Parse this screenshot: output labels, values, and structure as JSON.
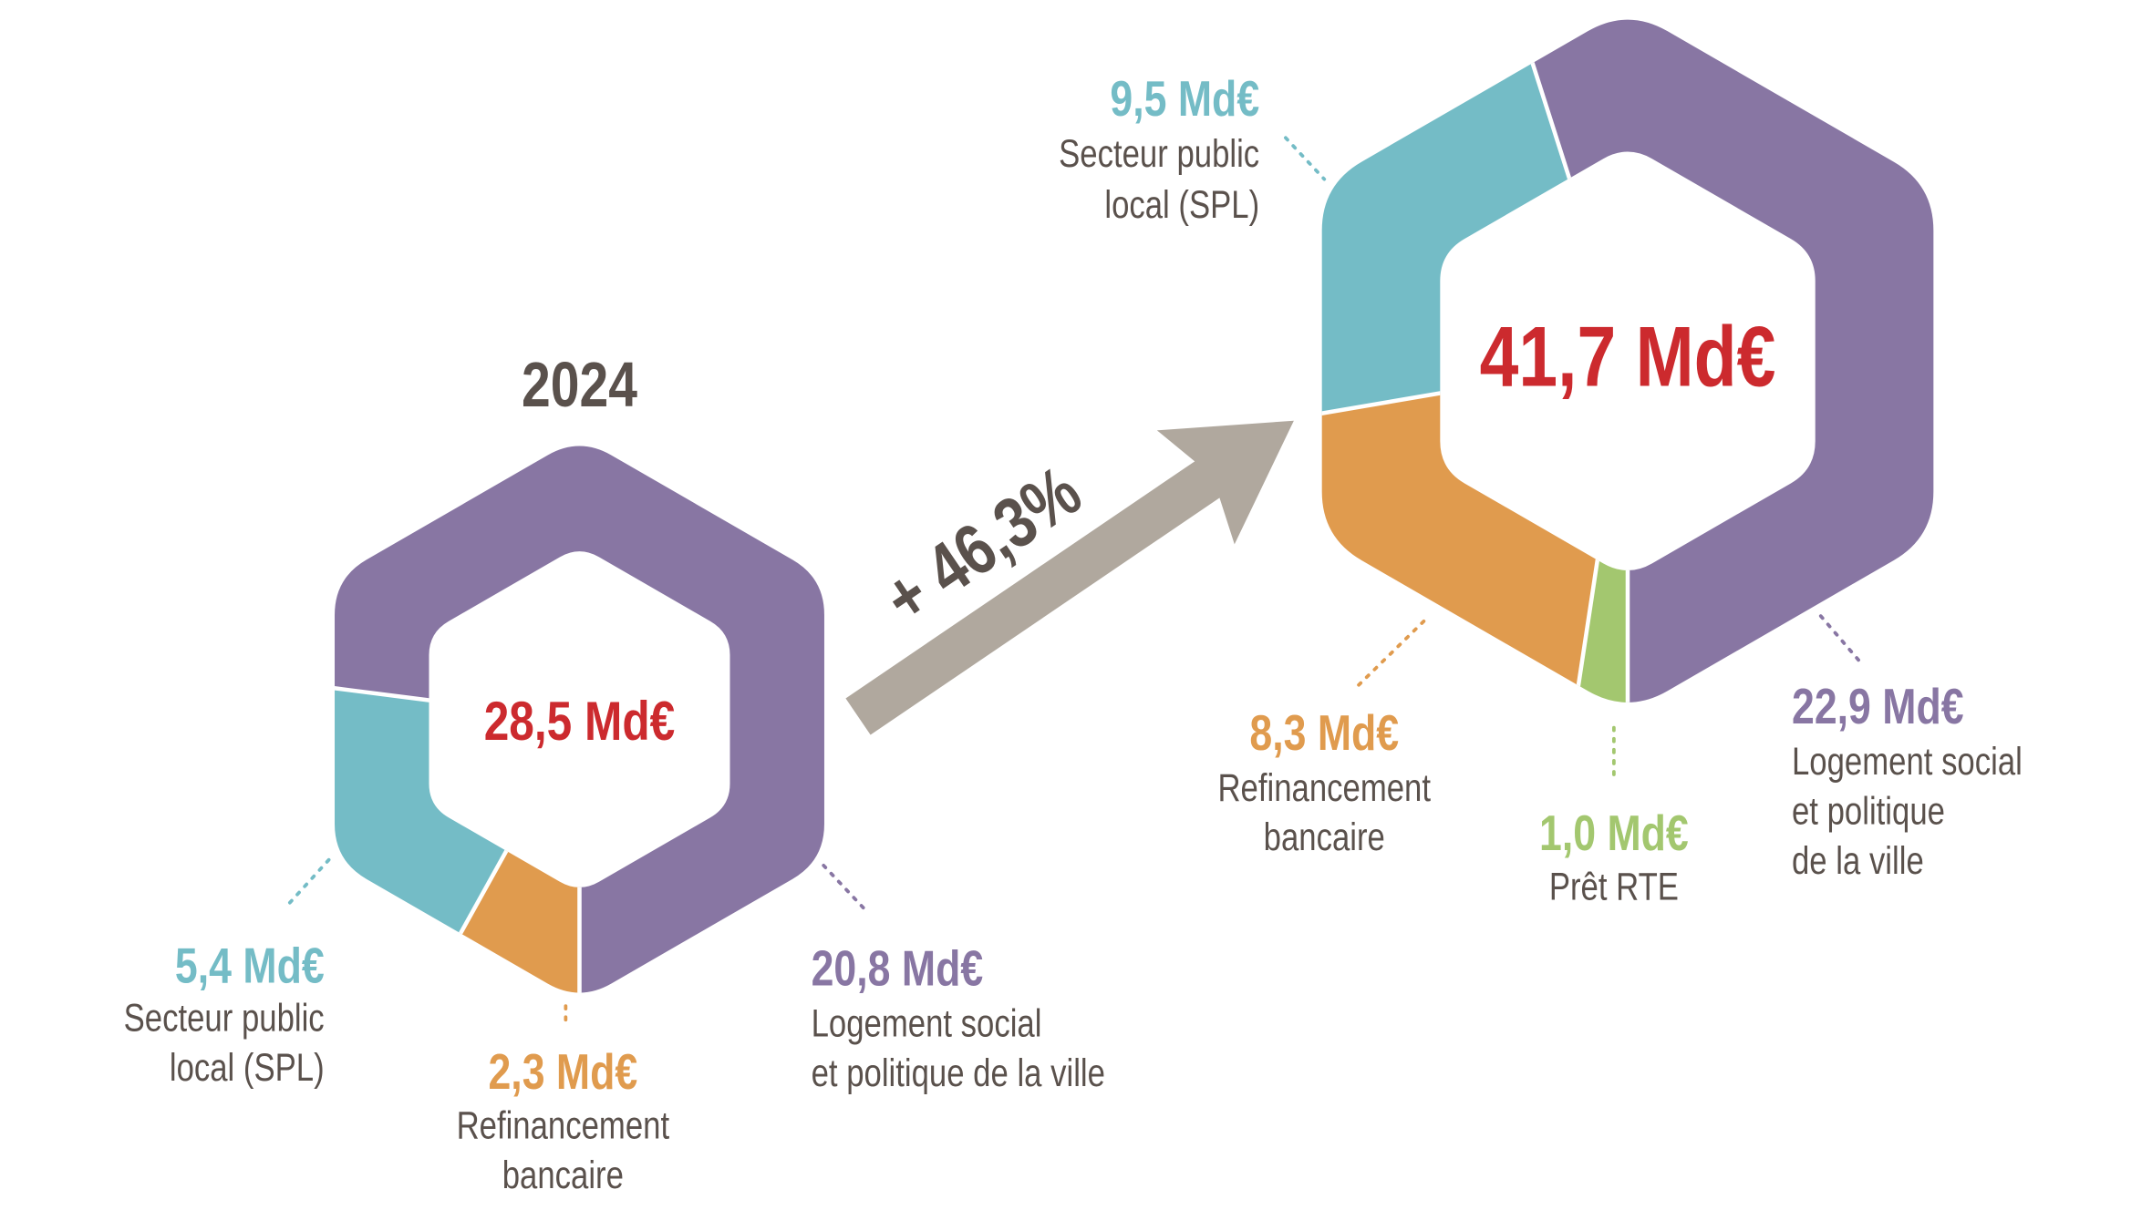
{
  "colors": {
    "purple": "#8876a3",
    "teal": "#74bcc6",
    "orange": "#e09b4e",
    "green": "#a3c76f",
    "red": "#cc2a2e",
    "text_gray": "#5a514c",
    "arrow_gray": "#b0a89e"
  },
  "growth": {
    "label": "+ 46,3%"
  },
  "chart_data": [
    {
      "type": "pie",
      "title": "2024",
      "total_label": "28,5 Md€",
      "total": 28.5,
      "unit": "Md€",
      "segments": [
        {
          "name": "Refinancement bancaire",
          "value": 2.3,
          "value_label": "2,3 Md€",
          "label_lines": [
            "Refinancement",
            "bancaire"
          ],
          "color": "#e09b4e"
        },
        {
          "name": "Secteur public local (SPL)",
          "value": 5.4,
          "value_label": "5,4 Md€",
          "label_lines": [
            "Secteur public",
            "local (SPL)"
          ],
          "color": "#74bcc6"
        },
        {
          "name": "Logement social et politique de la ville",
          "value": 20.8,
          "value_label": "20,8 Md€",
          "label_lines": [
            "Logement social",
            "et politique de la ville"
          ],
          "color": "#8876a3"
        }
      ]
    },
    {
      "type": "pie",
      "title": "",
      "total_label": "41,7 Md€",
      "total": 41.7,
      "unit": "Md€",
      "segments": [
        {
          "name": "Prêt RTE",
          "value": 1.0,
          "value_label": "1,0 Md€",
          "label_lines": [
            "Prêt RTE"
          ],
          "color": "#a3c76f"
        },
        {
          "name": "Refinancement bancaire",
          "value": 8.3,
          "value_label": "8,3 Md€",
          "label_lines": [
            "Refinancement",
            "bancaire"
          ],
          "color": "#e09b4e"
        },
        {
          "name": "Secteur public local (SPL)",
          "value": 9.5,
          "value_label": "9,5 Md€",
          "label_lines": [
            "Secteur public",
            "local (SPL)"
          ],
          "color": "#74bcc6"
        },
        {
          "name": "Logement social et politique de la ville",
          "value": 22.9,
          "value_label": "22,9 Md€",
          "label_lines": [
            "Logement social",
            "et politique",
            "de la ville"
          ],
          "color": "#8876a3"
        }
      ]
    }
  ]
}
